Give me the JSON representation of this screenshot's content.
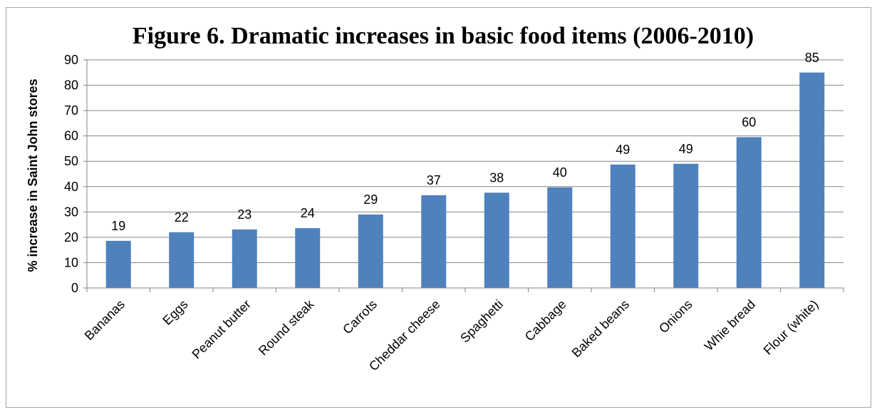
{
  "chart_data": {
    "type": "bar",
    "title": "Figure 6. Dramatic increases in basic food items (2006-2010)",
    "xlabel": "",
    "ylabel": "% increase in Saint John stores",
    "ylim": [
      0,
      90
    ],
    "yticks": [
      0,
      10,
      20,
      30,
      40,
      50,
      60,
      70,
      80,
      90
    ],
    "grid": true,
    "categories": [
      "Bananas",
      "Eggs",
      "Peanut butter",
      "Round steak",
      "Carrots",
      "Cheddar cheese",
      "Spaghetti",
      "Cabbage",
      "Baked beans",
      "Onions",
      "Whie bread",
      "Flour (white)"
    ],
    "values": [
      18.6,
      22,
      23.1,
      23.6,
      29,
      36.6,
      37.6,
      39.7,
      48.7,
      49,
      59.5,
      85
    ],
    "data_labels": [
      "19",
      "22",
      "23",
      "24",
      "29",
      "37",
      "38",
      "40",
      "49",
      "49",
      "60",
      "85"
    ],
    "bar_color": "#4f81bd"
  }
}
